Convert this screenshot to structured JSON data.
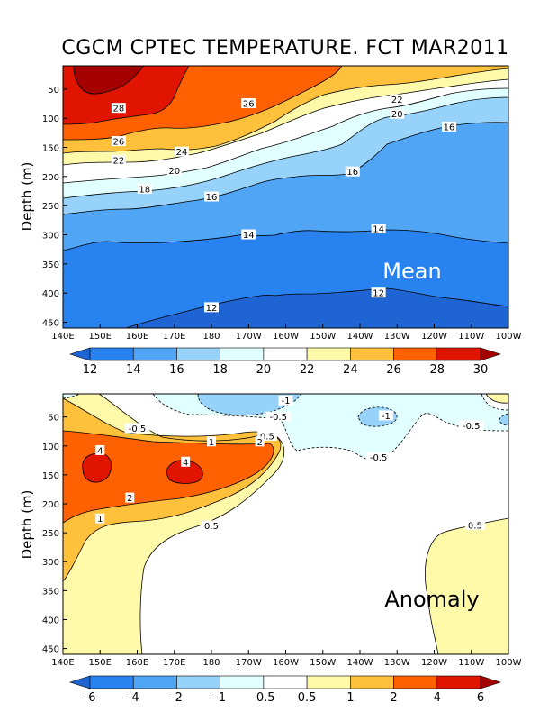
{
  "chart_data": {
    "type": "contour",
    "title": "CGCM CPTEC TEMPERATURE. FCT MAR2011",
    "panels": [
      {
        "name": "mean",
        "label": "Mean",
        "ylabel": "Depth (m)",
        "x_ticks": [
          "140E",
          "150E",
          "160E",
          "170E",
          "180",
          "170W",
          "160W",
          "150W",
          "140W",
          "130W",
          "120W",
          "110W",
          "100W"
        ],
        "y_ticks": [
          50,
          100,
          150,
          200,
          250,
          300,
          350,
          400,
          450
        ],
        "ylim": [
          10,
          460
        ],
        "xlim": [
          140,
          260
        ],
        "colorbar": {
          "ticks": [
            "12",
            "14",
            "16",
            "18",
            "20",
            "22",
            "24",
            "26",
            "28",
            "30"
          ],
          "colors": [
            "#1e64d2",
            "#2882f0",
            "#50a5f5",
            "#96d2fa",
            "#e1ffff",
            "#ffffff",
            "#fffaaa",
            "#ffc03c",
            "#ff6000",
            "#e11400",
            "#a50000"
          ]
        },
        "contour_labels": [
          {
            "value": "28",
            "lon": 155,
            "depth": 83
          },
          {
            "value": "26",
            "lon": 155,
            "depth": 140
          },
          {
            "value": "26",
            "lon": 190,
            "depth": 75
          },
          {
            "value": "24",
            "lon": 172,
            "depth": 158
          },
          {
            "value": "22",
            "lon": 155,
            "depth": 172
          },
          {
            "value": "22",
            "lon": 230,
            "depth": 68
          },
          {
            "value": "20",
            "lon": 170,
            "depth": 190
          },
          {
            "value": "20",
            "lon": 230,
            "depth": 93
          },
          {
            "value": "18",
            "lon": 162,
            "depth": 222
          },
          {
            "value": "16",
            "lon": 180,
            "depth": 235
          },
          {
            "value": "16",
            "lon": 218,
            "depth": 192
          },
          {
            "value": "16",
            "lon": 244,
            "depth": 115
          },
          {
            "value": "14",
            "lon": 190,
            "depth": 300
          },
          {
            "value": "14",
            "lon": 225,
            "depth": 290
          },
          {
            "value": "12",
            "lon": 180,
            "depth": 425
          },
          {
            "value": "12",
            "lon": 225,
            "depth": 400
          }
        ]
      },
      {
        "name": "anomaly",
        "label": "Anomaly",
        "ylabel": "Depth (m)",
        "x_ticks": [
          "140E",
          "150E",
          "160E",
          "170E",
          "180",
          "170W",
          "160W",
          "150W",
          "140W",
          "130W",
          "120W",
          "110W",
          "100W"
        ],
        "y_ticks": [
          50,
          100,
          150,
          200,
          250,
          300,
          350,
          400,
          450
        ],
        "ylim": [
          10,
          460
        ],
        "xlim": [
          140,
          260
        ],
        "colorbar": {
          "ticks": [
            "-6",
            "-4",
            "-2",
            "-1",
            "-0.5",
            "0.5",
            "1",
            "2",
            "4",
            "6"
          ],
          "colors": [
            "#1e64d2",
            "#2882f0",
            "#50a5f5",
            "#96d2fa",
            "#e1ffff",
            "#ffffff",
            "#fffaaa",
            "#ffc03c",
            "#ff6000",
            "#e11400",
            "#a50000"
          ]
        },
        "contour_labels": [
          {
            "value": "-1",
            "lon": 200,
            "depth": 22
          },
          {
            "value": "-0.5",
            "lon": 198,
            "depth": 50
          },
          {
            "value": "-1",
            "lon": 227,
            "depth": 48
          },
          {
            "value": "-0.5",
            "lon": 250,
            "depth": 65
          },
          {
            "value": "-0.5",
            "lon": 225,
            "depth": 120
          },
          {
            "value": "-0.5",
            "lon": 160,
            "depth": 70
          },
          {
            "value": "0.5",
            "lon": 195,
            "depth": 83
          },
          {
            "value": "1",
            "lon": 180,
            "depth": 93
          },
          {
            "value": "2",
            "lon": 193,
            "depth": 93
          },
          {
            "value": "4",
            "lon": 150,
            "depth": 108
          },
          {
            "value": "4",
            "lon": 173,
            "depth": 128
          },
          {
            "value": "2",
            "lon": 158,
            "depth": 190
          },
          {
            "value": "1",
            "lon": 150,
            "depth": 226
          },
          {
            "value": "0.5",
            "lon": 180,
            "depth": 238
          },
          {
            "value": "0.5",
            "lon": 251,
            "depth": 237
          }
        ]
      }
    ]
  }
}
